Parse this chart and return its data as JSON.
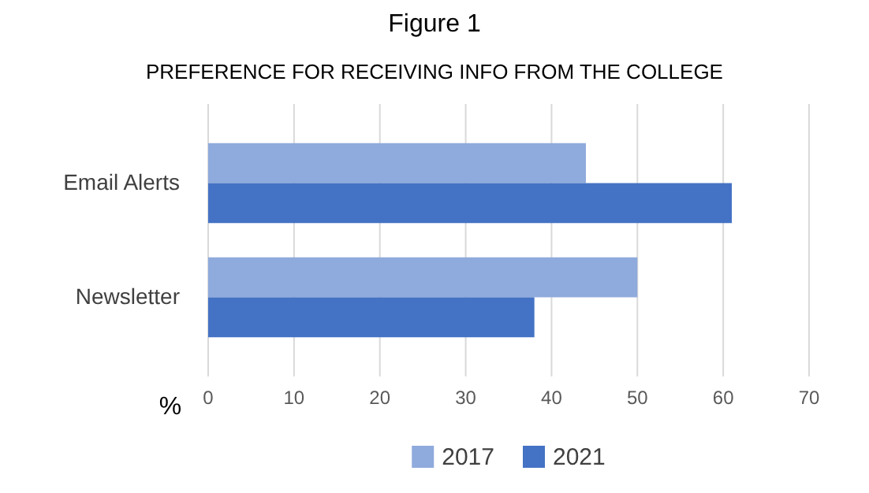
{
  "chart_data": {
    "type": "bar",
    "orientation": "horizontal",
    "title": "Figure 1",
    "subtitle": "PREFERENCE FOR RECEIVING INFO FROM THE COLLEGE",
    "xlabel": "%",
    "categories": [
      "Email Alerts",
      "Newsletter"
    ],
    "series": [
      {
        "name": "2017",
        "color": "#8faadc",
        "values": [
          44,
          50
        ]
      },
      {
        "name": "2021",
        "color": "#4472c4",
        "values": [
          61,
          38
        ]
      }
    ],
    "xlim": [
      0,
      70
    ],
    "xticks": [
      0,
      10,
      20,
      30,
      40,
      50,
      60,
      70
    ],
    "grid": "x",
    "legend": "bottom"
  }
}
